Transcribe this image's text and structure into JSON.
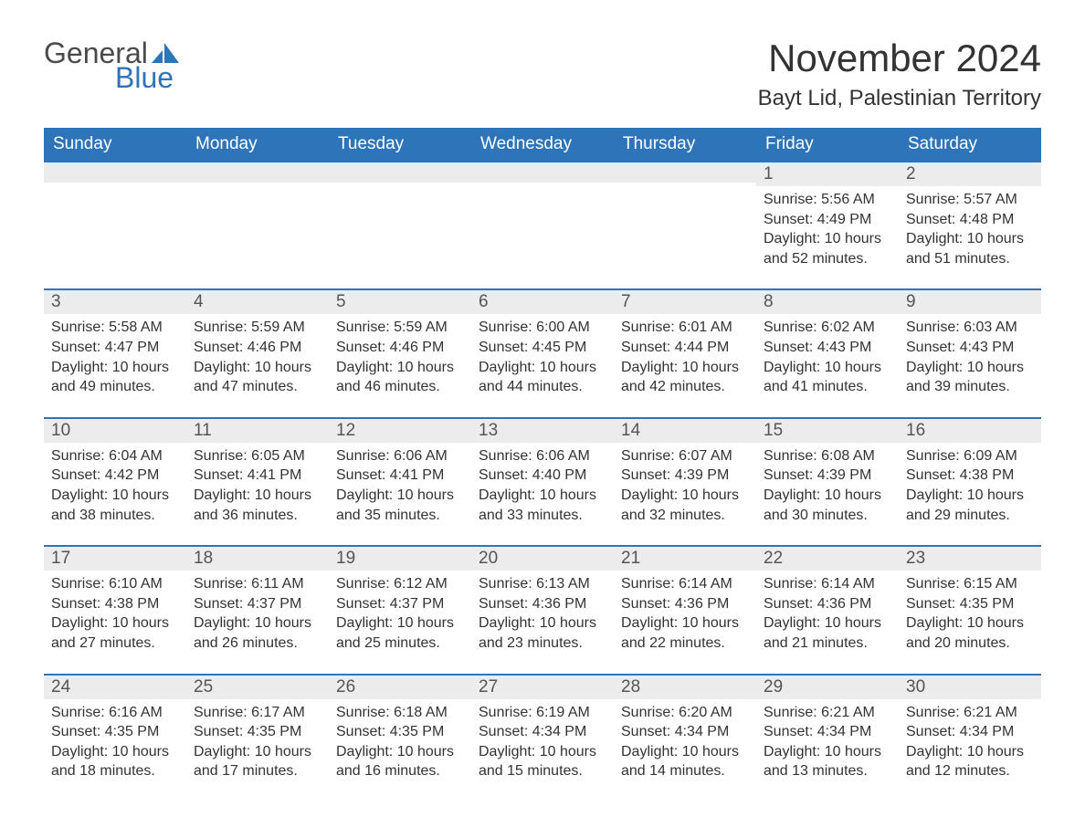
{
  "logo": {
    "text1": "General",
    "text2": "Blue"
  },
  "title": "November 2024",
  "location": "Bayt Lid, Palestinian Territory",
  "colors": {
    "header_bg": "#2d74b8",
    "header_text": "#ffffff",
    "daynum_bg": "#ececec",
    "border": "#2d74b8",
    "body_text": "#333333",
    "logo_gray": "#4a4a4a",
    "logo_blue": "#2d74b8"
  },
  "dow": [
    "Sunday",
    "Monday",
    "Tuesday",
    "Wednesday",
    "Thursday",
    "Friday",
    "Saturday"
  ],
  "label_sunrise": "Sunrise: ",
  "label_sunset": "Sunset: ",
  "label_daylight": "Daylight: ",
  "weeks": [
    [
      null,
      null,
      null,
      null,
      null,
      {
        "n": "1",
        "sr": "5:56 AM",
        "ss": "4:49 PM",
        "dl": "10 hours and 52 minutes."
      },
      {
        "n": "2",
        "sr": "5:57 AM",
        "ss": "4:48 PM",
        "dl": "10 hours and 51 minutes."
      }
    ],
    [
      {
        "n": "3",
        "sr": "5:58 AM",
        "ss": "4:47 PM",
        "dl": "10 hours and 49 minutes."
      },
      {
        "n": "4",
        "sr": "5:59 AM",
        "ss": "4:46 PM",
        "dl": "10 hours and 47 minutes."
      },
      {
        "n": "5",
        "sr": "5:59 AM",
        "ss": "4:46 PM",
        "dl": "10 hours and 46 minutes."
      },
      {
        "n": "6",
        "sr": "6:00 AM",
        "ss": "4:45 PM",
        "dl": "10 hours and 44 minutes."
      },
      {
        "n": "7",
        "sr": "6:01 AM",
        "ss": "4:44 PM",
        "dl": "10 hours and 42 minutes."
      },
      {
        "n": "8",
        "sr": "6:02 AM",
        "ss": "4:43 PM",
        "dl": "10 hours and 41 minutes."
      },
      {
        "n": "9",
        "sr": "6:03 AM",
        "ss": "4:43 PM",
        "dl": "10 hours and 39 minutes."
      }
    ],
    [
      {
        "n": "10",
        "sr": "6:04 AM",
        "ss": "4:42 PM",
        "dl": "10 hours and 38 minutes."
      },
      {
        "n": "11",
        "sr": "6:05 AM",
        "ss": "4:41 PM",
        "dl": "10 hours and 36 minutes."
      },
      {
        "n": "12",
        "sr": "6:06 AM",
        "ss": "4:41 PM",
        "dl": "10 hours and 35 minutes."
      },
      {
        "n": "13",
        "sr": "6:06 AM",
        "ss": "4:40 PM",
        "dl": "10 hours and 33 minutes."
      },
      {
        "n": "14",
        "sr": "6:07 AM",
        "ss": "4:39 PM",
        "dl": "10 hours and 32 minutes."
      },
      {
        "n": "15",
        "sr": "6:08 AM",
        "ss": "4:39 PM",
        "dl": "10 hours and 30 minutes."
      },
      {
        "n": "16",
        "sr": "6:09 AM",
        "ss": "4:38 PM",
        "dl": "10 hours and 29 minutes."
      }
    ],
    [
      {
        "n": "17",
        "sr": "6:10 AM",
        "ss": "4:38 PM",
        "dl": "10 hours and 27 minutes."
      },
      {
        "n": "18",
        "sr": "6:11 AM",
        "ss": "4:37 PM",
        "dl": "10 hours and 26 minutes."
      },
      {
        "n": "19",
        "sr": "6:12 AM",
        "ss": "4:37 PM",
        "dl": "10 hours and 25 minutes."
      },
      {
        "n": "20",
        "sr": "6:13 AM",
        "ss": "4:36 PM",
        "dl": "10 hours and 23 minutes."
      },
      {
        "n": "21",
        "sr": "6:14 AM",
        "ss": "4:36 PM",
        "dl": "10 hours and 22 minutes."
      },
      {
        "n": "22",
        "sr": "6:14 AM",
        "ss": "4:36 PM",
        "dl": "10 hours and 21 minutes."
      },
      {
        "n": "23",
        "sr": "6:15 AM",
        "ss": "4:35 PM",
        "dl": "10 hours and 20 minutes."
      }
    ],
    [
      {
        "n": "24",
        "sr": "6:16 AM",
        "ss": "4:35 PM",
        "dl": "10 hours and 18 minutes."
      },
      {
        "n": "25",
        "sr": "6:17 AM",
        "ss": "4:35 PM",
        "dl": "10 hours and 17 minutes."
      },
      {
        "n": "26",
        "sr": "6:18 AM",
        "ss": "4:35 PM",
        "dl": "10 hours and 16 minutes."
      },
      {
        "n": "27",
        "sr": "6:19 AM",
        "ss": "4:34 PM",
        "dl": "10 hours and 15 minutes."
      },
      {
        "n": "28",
        "sr": "6:20 AM",
        "ss": "4:34 PM",
        "dl": "10 hours and 14 minutes."
      },
      {
        "n": "29",
        "sr": "6:21 AM",
        "ss": "4:34 PM",
        "dl": "10 hours and 13 minutes."
      },
      {
        "n": "30",
        "sr": "6:21 AM",
        "ss": "4:34 PM",
        "dl": "10 hours and 12 minutes."
      }
    ]
  ]
}
